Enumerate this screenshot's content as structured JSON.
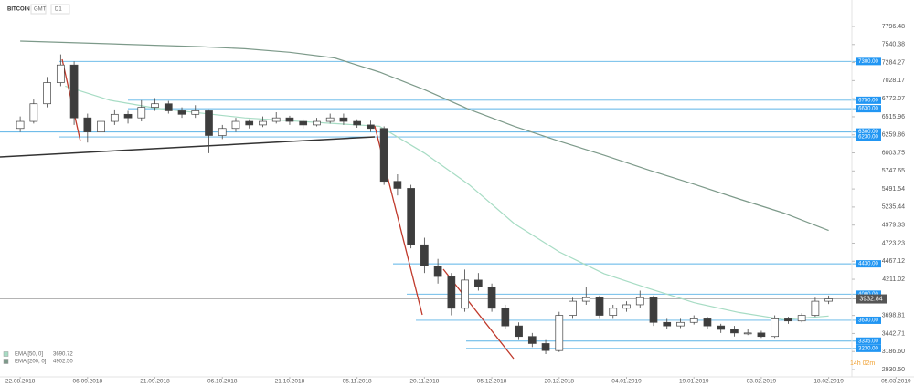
{
  "header": {
    "symbol": "BITCOIN",
    "timezone": "GMT",
    "timeframe": "D1"
  },
  "countdown": "14h 02m",
  "chart_data": {
    "type": "candlestick",
    "up_color": "#ffffff",
    "down_color": "#3d3d3d",
    "xlim": [
      -4.5,
      199
    ],
    "xticks": [
      {
        "value": 0,
        "label": "22.08.2018"
      },
      {
        "value": 15,
        "label": "06.09.2018"
      },
      {
        "value": 30,
        "label": "21.09.2018"
      },
      {
        "value": 45,
        "label": "06.10.2018"
      },
      {
        "value": 60,
        "label": "21.10.2018"
      },
      {
        "value": 75,
        "label": "05.11.2018"
      },
      {
        "value": 90,
        "label": "20.11.2018"
      },
      {
        "value": 105,
        "label": "05.12.2018"
      },
      {
        "value": 120,
        "label": "20.12.2018"
      },
      {
        "value": 135,
        "label": "04.01.2019"
      },
      {
        "value": 150,
        "label": "19.01.2019"
      },
      {
        "value": 165,
        "label": "03.02.2019"
      },
      {
        "value": 180,
        "label": "18.02.2019"
      },
      {
        "value": 195,
        "label": "05.03.2019"
      }
    ],
    "ylim": [
      2827,
      8107
    ],
    "yticks": [
      7796.48,
      7540.38,
      7284.27,
      7028.17,
      6772.07,
      6515.96,
      6259.86,
      6003.75,
      5747.65,
      5491.54,
      5235.44,
      4979.33,
      4723.23,
      4467.12,
      4211.02,
      3698.81,
      3442.71,
      {
        "value": 3186.6,
        "label": "3186.60"
      },
      {
        "value": 2930.5,
        "label": "2930.50"
      }
    ],
    "x": [
      0,
      3,
      6,
      9,
      12,
      15,
      18,
      21,
      24,
      27,
      30,
      33,
      36,
      39,
      42,
      45,
      48,
      51,
      54,
      57,
      60,
      63,
      66,
      69,
      72,
      75,
      78,
      81,
      84,
      87,
      90,
      93,
      96,
      99,
      102,
      105,
      108,
      111,
      114,
      117,
      120,
      123,
      126,
      129,
      132,
      135,
      138,
      141,
      144,
      147,
      150,
      153,
      156,
      159,
      162,
      165,
      168,
      171,
      174,
      177,
      180
    ],
    "ohlc": [
      [
        6350,
        6520,
        6300,
        6450
      ],
      [
        6450,
        6760,
        6420,
        6700
      ],
      [
        6700,
        7080,
        6650,
        7000
      ],
      [
        7000,
        7400,
        6950,
        7250
      ],
      [
        7250,
        7300,
        6400,
        6500
      ],
      [
        6500,
        6560,
        6150,
        6300
      ],
      [
        6300,
        6500,
        6250,
        6450
      ],
      [
        6450,
        6620,
        6400,
        6550
      ],
      [
        6550,
        6600,
        6420,
        6500
      ],
      [
        6500,
        6750,
        6450,
        6650
      ],
      [
        6650,
        6780,
        6600,
        6700
      ],
      [
        6700,
        6740,
        6560,
        6600
      ],
      [
        6600,
        6650,
        6500,
        6550
      ],
      [
        6550,
        6680,
        6500,
        6600
      ],
      [
        6600,
        6620,
        6000,
        6250
      ],
      [
        6250,
        6400,
        6200,
        6350
      ],
      [
        6350,
        6500,
        6300,
        6450
      ],
      [
        6450,
        6480,
        6350,
        6400
      ],
      [
        6400,
        6520,
        6370,
        6450
      ],
      [
        6450,
        6580,
        6420,
        6500
      ],
      [
        6500,
        6530,
        6400,
        6450
      ],
      [
        6450,
        6480,
        6350,
        6400
      ],
      [
        6400,
        6500,
        6380,
        6450
      ],
      [
        6450,
        6560,
        6420,
        6500
      ],
      [
        6500,
        6560,
        6400,
        6450
      ],
      [
        6450,
        6480,
        6360,
        6400
      ],
      [
        6400,
        6460,
        6300,
        6350
      ],
      [
        6350,
        6380,
        5550,
        5600
      ],
      [
        5600,
        5700,
        5400,
        5500
      ],
      [
        5500,
        5550,
        4650,
        4700
      ],
      [
        4700,
        4800,
        4300,
        4400
      ],
      [
        4400,
        4500,
        4150,
        4250
      ],
      [
        4250,
        4300,
        3700,
        3800
      ],
      [
        3800,
        4350,
        3750,
        4200
      ],
      [
        4200,
        4300,
        4050,
        4100
      ],
      [
        4100,
        4150,
        3750,
        3800
      ],
      [
        3800,
        3850,
        3500,
        3550
      ],
      [
        3550,
        3600,
        3350,
        3400
      ],
      [
        3400,
        3450,
        3250,
        3300
      ],
      [
        3300,
        3350,
        3150,
        3200
      ],
      [
        3200,
        3750,
        3180,
        3700
      ],
      [
        3700,
        3950,
        3650,
        3900
      ],
      [
        3900,
        4100,
        3850,
        3950
      ],
      [
        3950,
        3980,
        3650,
        3700
      ],
      [
        3700,
        3850,
        3650,
        3800
      ],
      [
        3800,
        3900,
        3750,
        3850
      ],
      [
        3850,
        4050,
        3800,
        3950
      ],
      [
        3950,
        3980,
        3550,
        3600
      ],
      [
        3600,
        3650,
        3500,
        3550
      ],
      [
        3550,
        3650,
        3520,
        3600
      ],
      [
        3600,
        3700,
        3570,
        3650
      ],
      [
        3650,
        3680,
        3500,
        3550
      ],
      [
        3550,
        3580,
        3450,
        3500
      ],
      [
        3500,
        3550,
        3400,
        3450
      ],
      [
        3450,
        3500,
        3420,
        3450
      ],
      [
        3450,
        3480,
        3380,
        3400
      ],
      [
        3400,
        3700,
        3380,
        3650
      ],
      [
        3650,
        3680,
        3580,
        3620
      ],
      [
        3620,
        3730,
        3600,
        3700
      ],
      [
        3700,
        3950,
        3680,
        3900
      ],
      [
        3900,
        3980,
        3860,
        3932.84
      ]
    ],
    "series": [
      {
        "name": "EMA [50, 0]",
        "color": "#a7dcc4",
        "last": {
          "value": 3690.72,
          "label": "3690.72"
        },
        "x": [
          10,
          20,
          30,
          40,
          50,
          60,
          70,
          80,
          90,
          100,
          110,
          120,
          130,
          140,
          150,
          160,
          170,
          180
        ],
        "values": [
          6950,
          6750,
          6640,
          6570,
          6500,
          6460,
          6420,
          6380,
          6000,
          5550,
          5000,
          4600,
          4290,
          4080,
          3880,
          3740,
          3640,
          3690.72
        ]
      },
      {
        "name": "EMA [200, 0]",
        "color": "#7d9a8a",
        "last": {
          "value": 4902.5,
          "label": "4902.50"
        },
        "x": [
          0,
          10,
          20,
          30,
          40,
          50,
          60,
          70,
          80,
          90,
          100,
          110,
          120,
          130,
          140,
          150,
          160,
          170,
          180
        ],
        "values": [
          7590,
          7570,
          7550,
          7530,
          7510,
          7480,
          7430,
          7350,
          7150,
          6900,
          6620,
          6380,
          6170,
          5970,
          5760,
          5560,
          5350,
          5150,
          4902.5
        ]
      }
    ],
    "level_color": "#5bb3e6",
    "levels": [
      {
        "value": 7300,
        "label": "7300.00"
      },
      {
        "value": 6750,
        "label": "6750.00"
      },
      {
        "value": 6630,
        "label": "6630.00"
      },
      {
        "value": 6300,
        "label": "6300.00"
      },
      {
        "value": 6230,
        "label": "6230.00"
      },
      {
        "value": 4430,
        "label": "4430.00"
      },
      {
        "value": 4000,
        "label": "4000.00"
      },
      {
        "value": 3630,
        "label": "3630.00"
      },
      {
        "value": 3335,
        "label": "3335.00"
      },
      {
        "value": 3230,
        "label": "3230.00"
      }
    ],
    "current_price": 3932.84
  }
}
